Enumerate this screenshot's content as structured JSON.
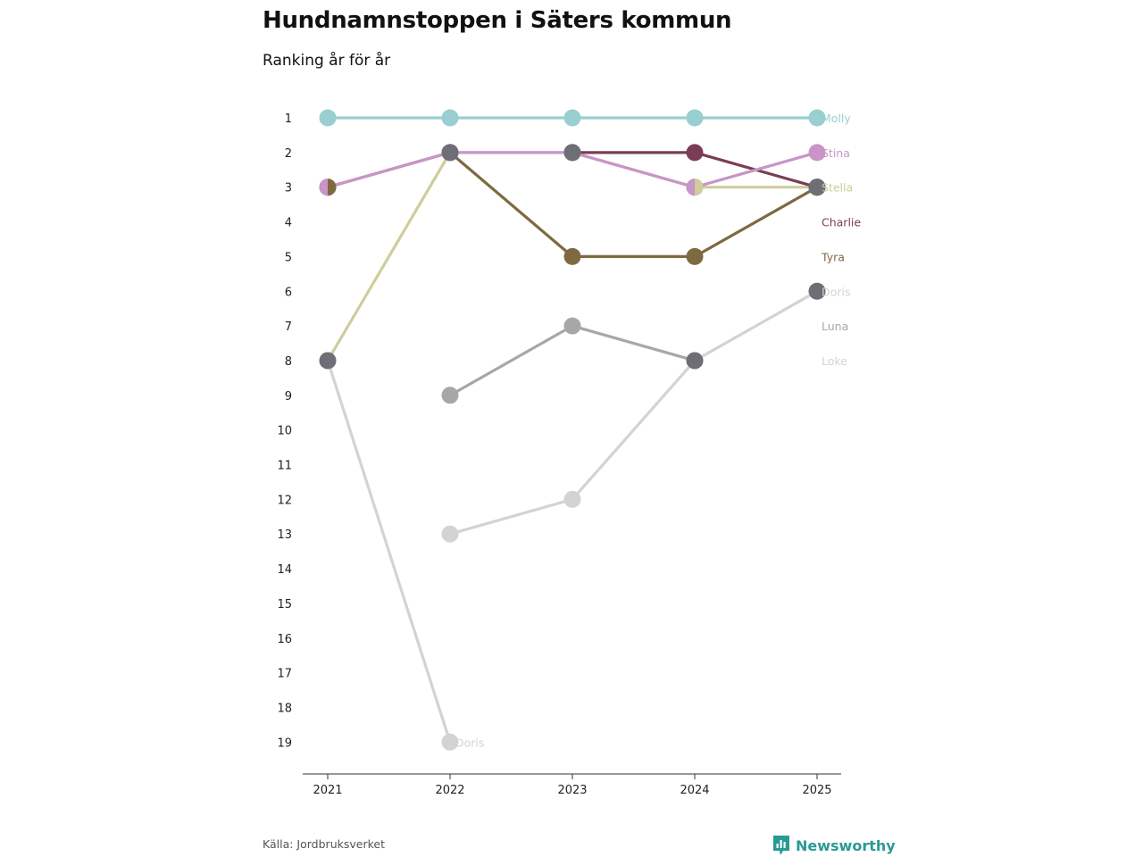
{
  "title": "Hundnamnstoppen i Säters kommun",
  "subtitle": "Ranking år för år",
  "source": "Källa: Jordbruksverket",
  "brand": {
    "name": "Newsworthy",
    "icon": "newsworthy-logo-icon",
    "color": "#2a9a94"
  },
  "chart_data": {
    "type": "line",
    "title": "Hundnamnstoppen i Säters kommun",
    "subtitle": "Ranking år för år",
    "x": [
      "2021",
      "2022",
      "2023",
      "2024",
      "2025"
    ],
    "y_ticks": [
      "1",
      "2",
      "3",
      "4",
      "5",
      "6",
      "7",
      "8",
      "9",
      "10",
      "11",
      "12",
      "13",
      "14",
      "15",
      "16",
      "17",
      "18",
      "19"
    ],
    "ylim": [
      1,
      19
    ],
    "y_inverted": true,
    "series": [
      {
        "name": "Loke",
        "color": "#d3d3d3",
        "values": [
          8,
          19,
          null,
          null,
          null
        ],
        "end_label": "Doris"
      },
      {
        "name": "Doris",
        "color": "#d3d3d3",
        "values": [
          null,
          13,
          12,
          8,
          6
        ]
      },
      {
        "name": "Luna",
        "color": "#a7a7a7",
        "values": [
          null,
          9,
          7,
          8,
          null
        ]
      },
      {
        "name": "Stella",
        "color": "#cfcd9b",
        "values": [
          8,
          2,
          2,
          3,
          3
        ]
      },
      {
        "name": "Tyra",
        "color": "#7e6a40",
        "values": [
          3,
          2,
          5,
          5,
          3
        ]
      },
      {
        "name": "Charlie",
        "color": "#7b3d55",
        "values": [
          null,
          null,
          2,
          2,
          3
        ]
      },
      {
        "name": "Stina",
        "color": "#c994c7",
        "values": [
          3,
          2,
          2,
          3,
          2
        ]
      },
      {
        "name": "Molly",
        "color": "#99cfd0",
        "values": [
          1,
          1,
          1,
          1,
          1
        ]
      }
    ],
    "legend_labels": [
      {
        "text": "Molly",
        "rank": 1,
        "color": "#99cfd0"
      },
      {
        "text": "Stina",
        "rank": 2,
        "color": "#c994c7"
      },
      {
        "text": "Stella",
        "rank": 3,
        "color": "#cfcd9b"
      },
      {
        "text": "Charlie",
        "rank": 4,
        "color": "#7b3d55"
      },
      {
        "text": "Tyra",
        "rank": 5,
        "color": "#7e6a40"
      },
      {
        "text": "Doris",
        "rank": 6,
        "color": "#d3d3d3"
      },
      {
        "text": "Luna",
        "rank": 7,
        "color": "#a7a7a7"
      },
      {
        "text": "Loke",
        "rank": 8,
        "color": "#d3d3d3"
      }
    ],
    "overlap_markers": [
      {
        "year": "2021",
        "rank": 3,
        "colors": [
          "#c994c7",
          "#7e6a40"
        ]
      },
      {
        "year": "2021",
        "rank": 8,
        "colors": [
          "#6e6e76"
        ]
      },
      {
        "year": "2022",
        "rank": 2,
        "colors": [
          "#6e6e76"
        ]
      },
      {
        "year": "2023",
        "rank": 2,
        "colors": [
          "#6e6e76"
        ]
      },
      {
        "year": "2024",
        "rank": 3,
        "colors": [
          "#c994c7",
          "#cfcd9b"
        ]
      },
      {
        "year": "2024",
        "rank": 8,
        "colors": [
          "#6e6e76"
        ]
      },
      {
        "year": "2025",
        "rank": 3,
        "colors": [
          "#6e6e76"
        ]
      },
      {
        "year": "2025",
        "rank": 6,
        "colors": [
          "#6e6e76"
        ]
      }
    ]
  }
}
